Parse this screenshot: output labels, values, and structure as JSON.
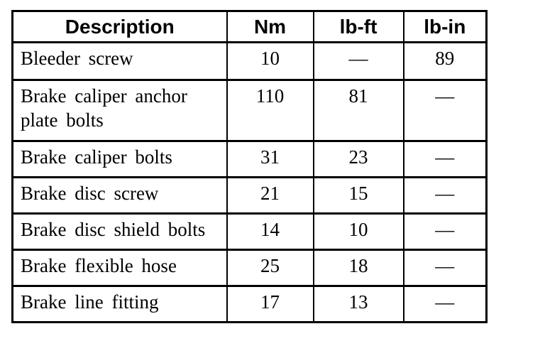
{
  "page": {
    "background_color": "#ffffff",
    "text_color": "#000000",
    "border_color": "#000000"
  },
  "table": {
    "headers": {
      "description": "Description",
      "nm": "Nm",
      "lb_ft": "lb-ft",
      "lb_in": "lb-in"
    },
    "rows": [
      {
        "description": "Bleeder screw",
        "nm": "10",
        "lb_ft": "—",
        "lb_in": "89"
      },
      {
        "description": "Brake caliper anchor plate bolts",
        "nm": "110",
        "lb_ft": "81",
        "lb_in": "—"
      },
      {
        "description": "Brake caliper bolts",
        "nm": "31",
        "lb_ft": "23",
        "lb_in": "—"
      },
      {
        "description": "Brake disc screw",
        "nm": "21",
        "lb_ft": "15",
        "lb_in": "—"
      },
      {
        "description": "Brake disc shield bolts",
        "nm": "14",
        "lb_ft": "10",
        "lb_in": "—"
      },
      {
        "description": "Brake flexible hose",
        "nm": "25",
        "lb_ft": "18",
        "lb_in": "—"
      },
      {
        "description": "Brake line fitting",
        "nm": "17",
        "lb_ft": "13",
        "lb_in": "—"
      }
    ]
  }
}
